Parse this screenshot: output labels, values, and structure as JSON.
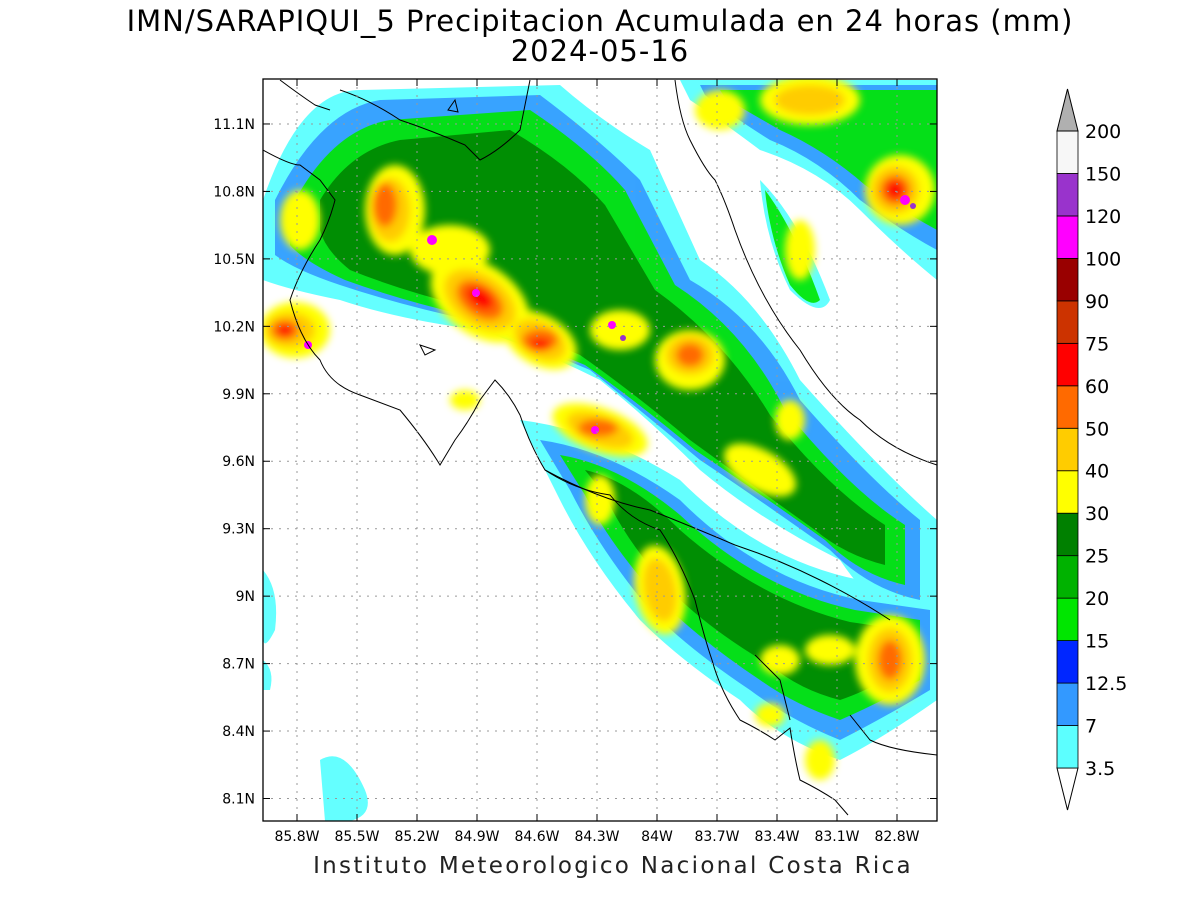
{
  "title_line1": "IMN/SARAPIQUI_5 Precipitacion Acumulada en 24 horas (mm)",
  "title_line2": "2024-05-16",
  "footer": "Instituto Meteorologico Nacional Costa Rica",
  "map": {
    "lon_range": [
      -85.97,
      -82.6
    ],
    "lat_range": [
      8.0,
      11.3
    ],
    "lon_ticks": [
      "85.8W",
      "85.5W",
      "85.2W",
      "84.9W",
      "84.6W",
      "84.3W",
      "84W",
      "83.7W",
      "83.4W",
      "83.1W",
      "82.8W"
    ],
    "lat_ticks": [
      "11.1N",
      "10.8N",
      "10.5N",
      "10.2N",
      "9.9N",
      "9.6N",
      "9.3N",
      "9N",
      "8.7N",
      "8.4N",
      "8.1N"
    ],
    "grid": "dotted"
  },
  "colorbar": {
    "labels": [
      "3.5",
      "7",
      "12.5",
      "15",
      "20",
      "25",
      "30",
      "40",
      "50",
      "60",
      "75",
      "90",
      "100",
      "120",
      "150",
      "200"
    ],
    "colors": [
      "#5cffff",
      "#3399ff",
      "#0026ff",
      "#00e600",
      "#00b200",
      "#008000",
      "#ffff00",
      "#ffcc00",
      "#ff6a00",
      "#ff0000",
      "#cc3300",
      "#990000",
      "#ff00ff",
      "#9933cc",
      "#f7f7f7",
      "#b0b0b0"
    ]
  }
}
